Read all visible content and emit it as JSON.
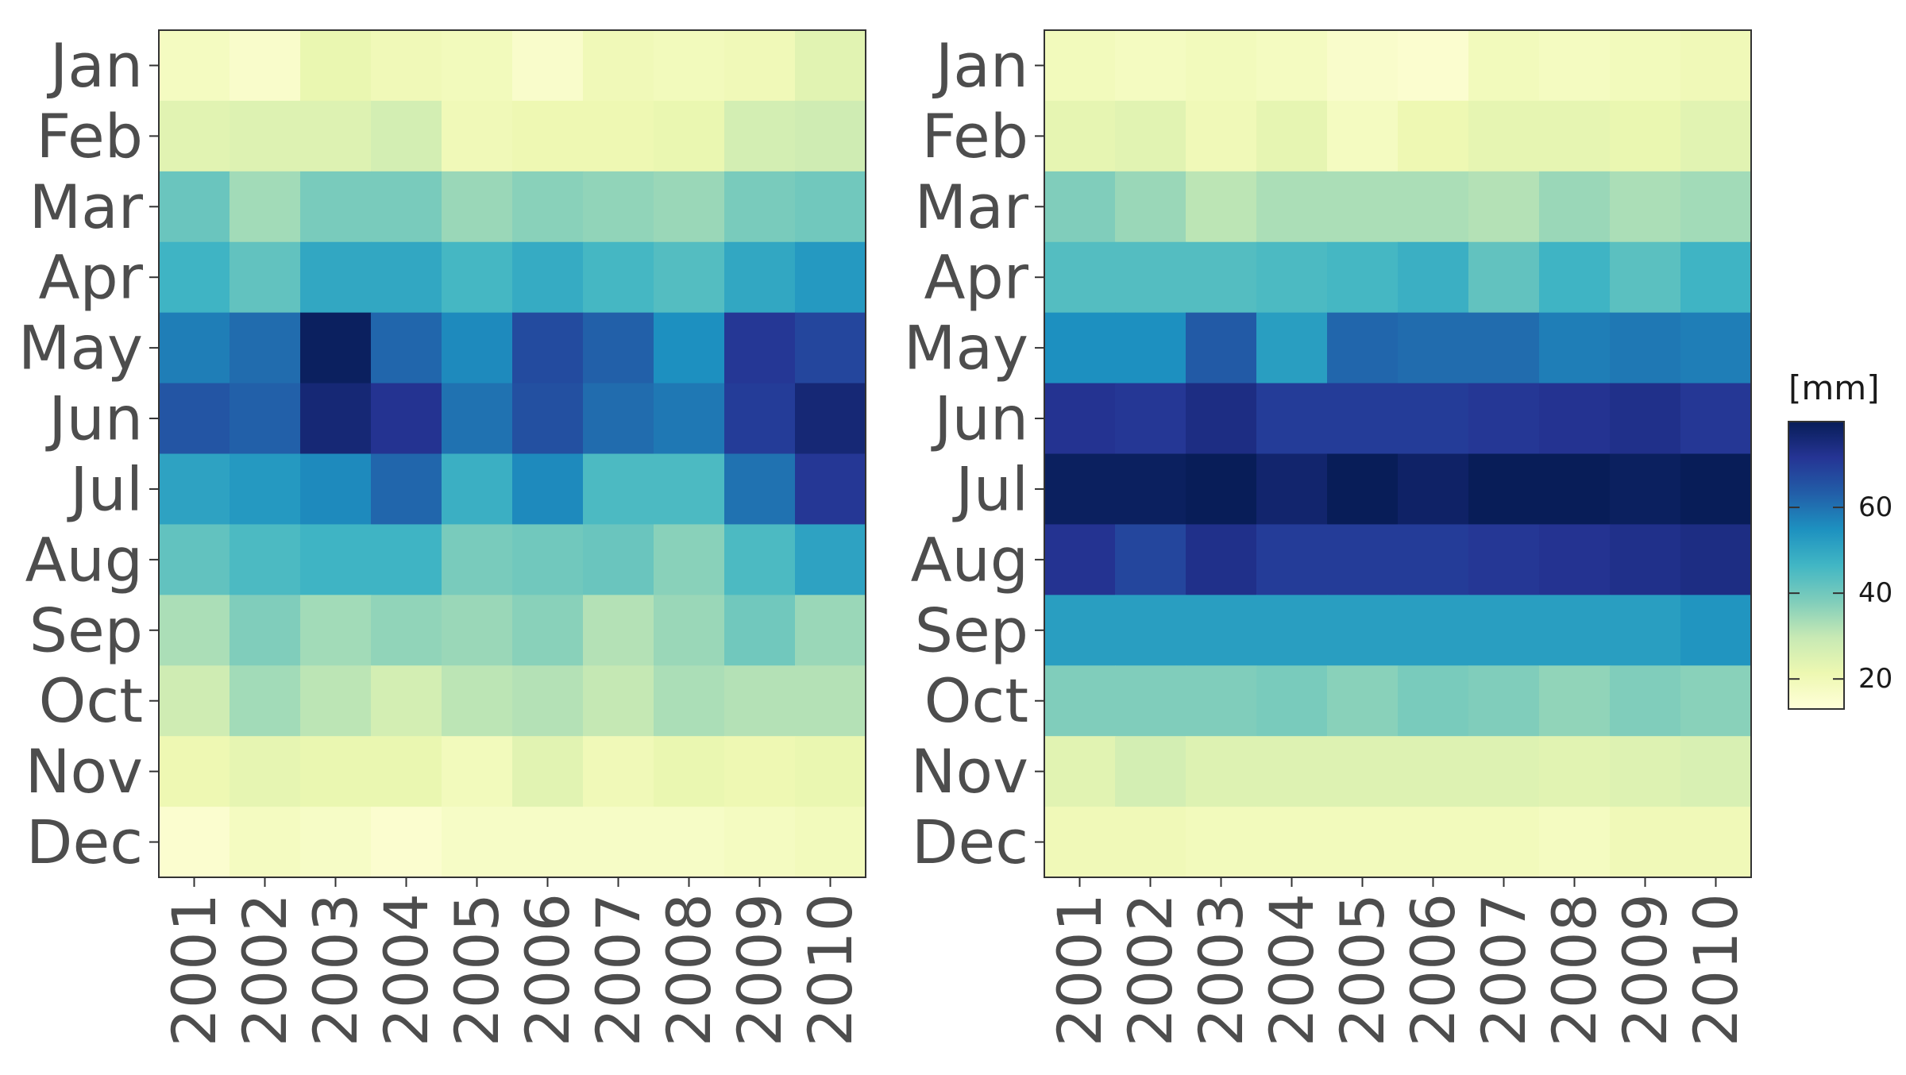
{
  "chart_data": [
    {
      "type": "heatmap",
      "title": "",
      "xlabel": "",
      "ylabel": "",
      "x": [
        "2001",
        "2002",
        "2003",
        "2004",
        "2005",
        "2006",
        "2007",
        "2008",
        "2009",
        "2010"
      ],
      "y": [
        "Jan",
        "Feb",
        "Mar",
        "Apr",
        "May",
        "Jun",
        "Jul",
        "Aug",
        "Sep",
        "Oct",
        "Nov",
        "Dec"
      ],
      "values": [
        [
          18,
          16,
          22,
          20,
          19,
          16,
          20,
          19,
          20,
          24
        ],
        [
          24,
          25,
          25,
          27,
          20,
          21,
          21,
          22,
          27,
          28
        ],
        [
          41,
          34,
          39,
          39,
          35,
          37,
          36,
          35,
          39,
          40
        ],
        [
          47,
          42,
          50,
          50,
          46,
          49,
          46,
          44,
          50,
          53
        ],
        [
          58,
          61,
          79,
          62,
          56,
          67,
          63,
          55,
          71,
          68
        ],
        [
          65,
          63,
          76,
          72,
          60,
          66,
          61,
          59,
          70,
          76
        ],
        [
          51,
          53,
          56,
          62,
          48,
          56,
          45,
          45,
          60,
          71
        ],
        [
          42,
          45,
          47,
          47,
          39,
          40,
          41,
          37,
          45,
          51
        ],
        [
          33,
          38,
          34,
          36,
          35,
          37,
          32,
          35,
          40,
          35
        ],
        [
          28,
          34,
          31,
          27,
          31,
          32,
          30,
          33,
          32,
          32
        ],
        [
          21,
          23,
          22,
          22,
          19,
          24,
          20,
          22,
          21,
          22
        ],
        [
          15,
          18,
          17,
          15,
          17,
          17,
          17,
          17,
          18,
          19
        ]
      ]
    },
    {
      "type": "heatmap",
      "title": "",
      "xlabel": "",
      "ylabel": "",
      "x": [
        "2001",
        "2002",
        "2003",
        "2004",
        "2005",
        "2006",
        "2007",
        "2008",
        "2009",
        "2010"
      ],
      "y": [
        "Jan",
        "Feb",
        "Mar",
        "Apr",
        "May",
        "Jun",
        "Jul",
        "Aug",
        "Sep",
        "Oct",
        "Nov",
        "Dec"
      ],
      "values": [
        [
          19,
          18,
          19,
          18,
          16,
          15,
          19,
          18,
          19,
          20
        ],
        [
          23,
          24,
          20,
          23,
          18,
          21,
          23,
          23,
          22,
          24
        ],
        [
          38,
          35,
          31,
          33,
          33,
          33,
          32,
          35,
          33,
          34
        ],
        [
          44,
          44,
          44,
          45,
          46,
          48,
          42,
          47,
          43,
          47
        ],
        [
          55,
          55,
          64,
          52,
          62,
          61,
          61,
          58,
          59,
          58
        ],
        [
          72,
          71,
          74,
          70,
          70,
          70,
          71,
          72,
          73,
          71
        ],
        [
          79,
          79,
          81,
          77,
          82,
          78,
          80,
          80,
          79,
          81
        ],
        [
          72,
          68,
          73,
          70,
          70,
          70,
          71,
          72,
          73,
          74
        ],
        [
          52,
          52,
          52,
          52,
          52,
          52,
          52,
          52,
          52,
          54
        ],
        [
          38,
          38,
          38,
          39,
          37,
          39,
          38,
          36,
          38,
          37
        ],
        [
          24,
          27,
          25,
          25,
          25,
          25,
          25,
          24,
          25,
          26
        ],
        [
          20,
          20,
          19,
          19,
          19,
          19,
          19,
          18,
          20,
          20
        ]
      ]
    }
  ],
  "legend": {
    "title": "[mm]",
    "ticks": [
      20,
      40,
      60
    ],
    "range": [
      13,
      80
    ],
    "colors": [
      "#ffffd9",
      "#edf8b1",
      "#c7e9b4",
      "#7fcdbb",
      "#41b6c4",
      "#1d91c0",
      "#225ea8",
      "#253494",
      "#081d58"
    ]
  },
  "style": {
    "panel_border": "#333333",
    "tick_text": "#4d4d4d",
    "legend_text": "#1a1a1a"
  }
}
